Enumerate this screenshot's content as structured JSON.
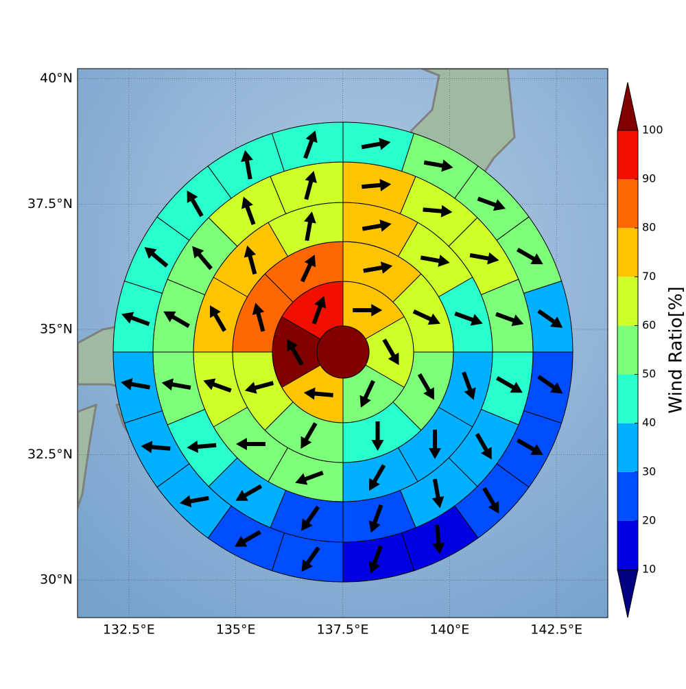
{
  "chart_data": {
    "type": "polar_sectors",
    "xlim": [
      131.3,
      143.7
    ],
    "ylim": [
      29.25,
      40.2
    ],
    "xticks": [
      {
        "value": 132.5,
        "label": "132.5°E"
      },
      {
        "value": 135,
        "label": "135°E"
      },
      {
        "value": 137.5,
        "label": "137.5°E"
      },
      {
        "value": 140,
        "label": "140°E"
      },
      {
        "value": 142.5,
        "label": "142.5°E"
      }
    ],
    "yticks": [
      {
        "value": 30,
        "label": "30°N"
      },
      {
        "value": 32.5,
        "label": "32.5°N"
      },
      {
        "value": 35,
        "label": "35°N"
      },
      {
        "value": 37.5,
        "label": "37.5°N"
      },
      {
        "value": 40,
        "label": "40°N"
      }
    ],
    "grid": true,
    "colorbar": {
      "label": "Wind Ratio[%]",
      "ticks": [
        10,
        20,
        30,
        40,
        50,
        60,
        70,
        80,
        90,
        100
      ],
      "colors": [
        "#0000e0",
        "#004cff",
        "#00b0ff",
        "#29ffce",
        "#7dff7a",
        "#ceff29",
        "#ffc400",
        "#ff6800",
        "#f11000"
      ],
      "under_color": "#000080",
      "over_color": "#800000"
    },
    "center": {
      "value": 105
    },
    "rings": [
      {
        "values": [
          75,
          65,
          55,
          75,
          105,
          95
        ],
        "directions": [
          90,
          150,
          205,
          275,
          330,
          20
        ]
      },
      {
        "values": [
          75,
          65,
          55,
          45,
          55,
          65,
          85,
          85
        ],
        "directions": [
          80,
          115,
          150,
          180,
          210,
          255,
          345,
          25
        ]
      },
      {
        "values": [
          75,
          65,
          45,
          35,
          35,
          35,
          55,
          55,
          65,
          75,
          75,
          65
        ],
        "directions": [
          80,
          100,
          110,
          160,
          180,
          210,
          250,
          270,
          290,
          330,
          345,
          10
        ]
      },
      {
        "values": [
          75,
          65,
          65,
          55,
          45,
          35,
          35,
          25,
          25,
          35,
          45,
          55,
          55,
          55,
          65,
          65
        ],
        "directions": [
          85,
          95,
          100,
          110,
          120,
          150,
          170,
          200,
          215,
          240,
          265,
          280,
          300,
          320,
          340,
          15
        ]
      },
      {
        "values": [
          45,
          55,
          55,
          55,
          35,
          25,
          25,
          25,
          15,
          15,
          25,
          25,
          35,
          35,
          35,
          45,
          45,
          45,
          45,
          45
        ],
        "directions": [
          80,
          100,
          110,
          120,
          125,
          125,
          120,
          150,
          175,
          200,
          215,
          240,
          260,
          275,
          280,
          290,
          310,
          330,
          350,
          20
        ]
      }
    ]
  }
}
